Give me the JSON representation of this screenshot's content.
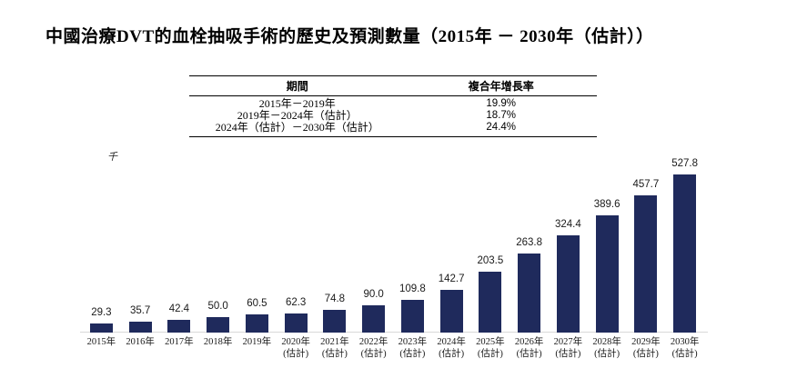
{
  "title": "中國治療DVT的血栓抽吸手術的歷史及預測數量（2015年 － 2030年（估計））",
  "table": {
    "headers": [
      "期間",
      "複合年增長率"
    ],
    "rows": [
      {
        "period": "2015年－2019年",
        "cagr": "19.9%"
      },
      {
        "period": "2019年－2024年（估計）",
        "cagr": "18.7%"
      },
      {
        "period": "2024年（估計）－2030年（估計）",
        "cagr": "24.4%"
      }
    ]
  },
  "chart_data": {
    "type": "bar",
    "title": "中國治療DVT的血栓抽吸手術的歷史及預測數量（2015年 － 2030年（估計））",
    "xlabel": "",
    "ylabel": "千",
    "ylim": [
      0,
      560
    ],
    "grid": false,
    "legend": "none",
    "bar_color": "#1f2a5c",
    "axis_line_color": "#d8d8d8",
    "categories": [
      {
        "year": "2015年",
        "note": ""
      },
      {
        "year": "2016年",
        "note": ""
      },
      {
        "year": "2017年",
        "note": ""
      },
      {
        "year": "2018年",
        "note": ""
      },
      {
        "year": "2019年",
        "note": ""
      },
      {
        "year": "2020年",
        "note": "(估計)"
      },
      {
        "year": "2021年",
        "note": "(估計)"
      },
      {
        "year": "2022年",
        "note": "(估計)"
      },
      {
        "year": "2023年",
        "note": "(估計)"
      },
      {
        "year": "2024年",
        "note": "(估計)"
      },
      {
        "year": "2025年",
        "note": "(估計)"
      },
      {
        "year": "2026年",
        "note": "(估計)"
      },
      {
        "year": "2027年",
        "note": "(估計)"
      },
      {
        "year": "2028年",
        "note": "(估計)"
      },
      {
        "year": "2029年",
        "note": "(估計)"
      },
      {
        "year": "2030年",
        "note": "(估計)"
      }
    ],
    "values": [
      29.3,
      35.7,
      42.4,
      50.0,
      60.5,
      62.3,
      74.8,
      90.0,
      109.8,
      142.7,
      203.5,
      263.8,
      324.4,
      389.6,
      457.7,
      527.8
    ],
    "value_labels": [
      "29.3",
      "35.7",
      "42.4",
      "50.0",
      "60.5",
      "62.3",
      "74.8",
      "90.0",
      "109.8",
      "142.7",
      "203.5",
      "263.8",
      "324.4",
      "389.6",
      "457.7",
      "527.8"
    ]
  }
}
